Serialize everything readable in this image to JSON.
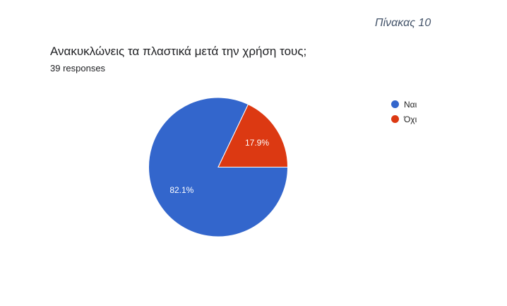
{
  "caption": "Πίνακας 10",
  "question": "Ανακυκλώνεις τα πλαστικά μετά την χρήση τους;",
  "responses": "39 responses",
  "chart_data": {
    "type": "pie",
    "labels": [
      "Ναι",
      "Όχι"
    ],
    "values": [
      82.1,
      17.9
    ],
    "data_labels": [
      "82.1%",
      "17.9%"
    ],
    "colors": [
      "#3366cc",
      "#dc3912"
    ],
    "legend_position": "right"
  }
}
